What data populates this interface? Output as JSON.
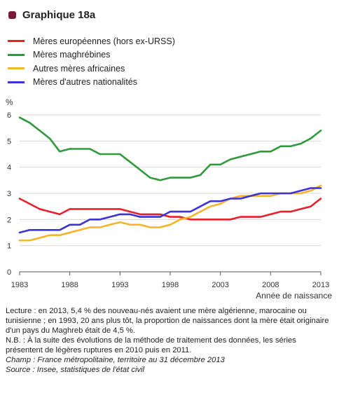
{
  "header": {
    "title": "Graphique 18a",
    "marker_color": "#7a1a3a"
  },
  "chart_data": {
    "type": "line",
    "title": "Graphique 18a",
    "ylabel": "%",
    "xlabel": "Année de naissance",
    "x": [
      1983,
      1984,
      1985,
      1986,
      1987,
      1988,
      1989,
      1990,
      1991,
      1992,
      1993,
      1994,
      1995,
      1996,
      1997,
      1998,
      1999,
      2000,
      2001,
      2002,
      2003,
      2004,
      2005,
      2006,
      2007,
      2008,
      2009,
      2010,
      2011,
      2012,
      2013
    ],
    "xticks": [
      "1983",
      "1988",
      "1993",
      "1998",
      "2003",
      "2008",
      "2013"
    ],
    "yticks": [
      "0",
      "1",
      "2",
      "3",
      "4",
      "5",
      "6"
    ],
    "ylim": [
      0,
      6
    ],
    "xlim": [
      1983,
      2013
    ],
    "grid": "horizontal",
    "legend_position": "top-left",
    "series": [
      {
        "name": "Mères européennes (hors ex-URSS)",
        "color": "#e8202a",
        "values": [
          2.8,
          2.6,
          2.4,
          2.3,
          2.2,
          2.4,
          2.4,
          2.4,
          2.4,
          2.4,
          2.4,
          2.3,
          2.2,
          2.2,
          2.2,
          2.1,
          2.1,
          2.0,
          2.0,
          2.0,
          2.0,
          2.0,
          2.1,
          2.1,
          2.1,
          2.2,
          2.3,
          2.3,
          2.4,
          2.5,
          2.8
        ]
      },
      {
        "name": "Mères maghrébines",
        "color": "#2e9a3a",
        "values": [
          5.9,
          5.7,
          5.4,
          5.1,
          4.6,
          4.7,
          4.7,
          4.7,
          4.5,
          4.5,
          4.5,
          4.2,
          3.9,
          3.6,
          3.5,
          3.6,
          3.6,
          3.6,
          3.7,
          4.1,
          4.1,
          4.3,
          4.4,
          4.5,
          4.6,
          4.6,
          4.8,
          4.8,
          4.9,
          5.1,
          5.4
        ]
      },
      {
        "name": "Autres mères africaines",
        "color": "#f5b42a",
        "values": [
          1.2,
          1.2,
          1.3,
          1.4,
          1.4,
          1.5,
          1.6,
          1.7,
          1.7,
          1.8,
          1.9,
          1.8,
          1.8,
          1.7,
          1.7,
          1.8,
          2.0,
          2.1,
          2.3,
          2.5,
          2.6,
          2.8,
          2.9,
          2.9,
          2.9,
          2.9,
          3.0,
          3.0,
          3.0,
          3.1,
          3.3
        ]
      },
      {
        "name": "Mères d'autres nationalités",
        "color": "#3a34d6",
        "values": [
          1.5,
          1.6,
          1.6,
          1.6,
          1.6,
          1.8,
          1.8,
          2.0,
          2.0,
          2.1,
          2.2,
          2.2,
          2.1,
          2.1,
          2.1,
          2.3,
          2.3,
          2.3,
          2.5,
          2.7,
          2.7,
          2.8,
          2.8,
          2.9,
          3.0,
          3.0,
          3.0,
          3.0,
          3.1,
          3.2,
          3.2
        ]
      }
    ]
  },
  "notes": {
    "reading": "Lecture : en 2013, 5,4 % des nouveau-nés avaient une mère algérienne, marocaine ou tunisienne ; en 1993, 20 ans plus tôt, la proportion de naissances dont la mère était originaire d'un pays du Maghreb était de 4,5 %.",
    "nb": "N.B. : À la suite des évolutions de la méthode de traitement des données, les séries présentent de légères ruptures en 2010 puis en 2011.",
    "champ": "Champ : France métropolitaine, territoire au 31 décembre 2013",
    "source": "Source : Insee, statistiques de l'état civil"
  }
}
